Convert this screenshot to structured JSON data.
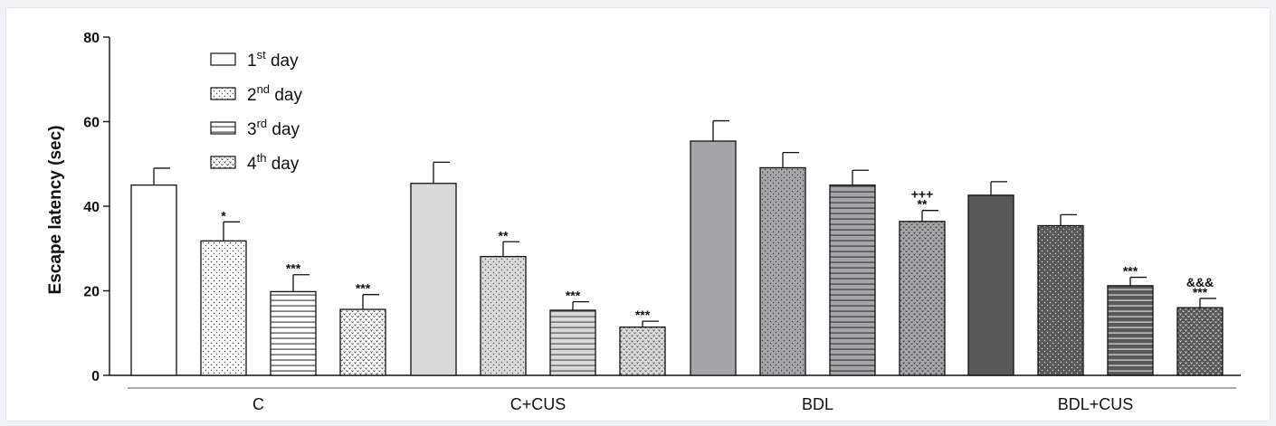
{
  "chart_data": {
    "type": "bar",
    "ylabel": "Escape latency (sec)",
    "ylim": [
      0,
      80
    ],
    "yticks": [
      0,
      20,
      40,
      60,
      80
    ],
    "groups": [
      "C",
      "C+CUS",
      "BDL",
      "BDL+CUS"
    ],
    "series": [
      {
        "name": "1st day",
        "base": "1",
        "sup": "st",
        "rest": " day"
      },
      {
        "name": "2nd day",
        "base": "2",
        "sup": "nd",
        "rest": " day"
      },
      {
        "name": "3rd day",
        "base": "3",
        "sup": "rd",
        "rest": " day"
      },
      {
        "name": "4th day",
        "base": "4",
        "sup": "th",
        "rest": " day"
      }
    ],
    "values": [
      [
        45.0,
        31.8,
        19.8,
        15.6
      ],
      [
        45.4,
        28.1,
        15.4,
        11.4
      ],
      [
        55.4,
        49.1,
        45.0,
        36.4
      ],
      [
        42.6,
        35.4,
        21.2,
        16.0
      ]
    ],
    "errors": [
      [
        4.0,
        4.5,
        4.0,
        3.5
      ],
      [
        5.0,
        3.5,
        2.0,
        1.4
      ],
      [
        4.8,
        3.6,
        3.5,
        2.6
      ],
      [
        3.2,
        2.6,
        2.0,
        2.2
      ]
    ],
    "annotations": [
      [
        "",
        "*",
        "***",
        "***"
      ],
      [
        "",
        "**",
        "***",
        "***"
      ],
      [
        "",
        "",
        "",
        "+++\n**"
      ],
      [
        "",
        "",
        "***",
        "&&&\n***"
      ]
    ],
    "legend_position": "top-left",
    "grid": false
  },
  "colors": {
    "group_fills": [
      "#ffffff",
      "#d9d9d9",
      "#a6a6aa",
      "#585858"
    ],
    "pattern_ink": [
      "#444444",
      "#555555",
      "#3a3a3a",
      "#dcdcdc"
    ]
  }
}
